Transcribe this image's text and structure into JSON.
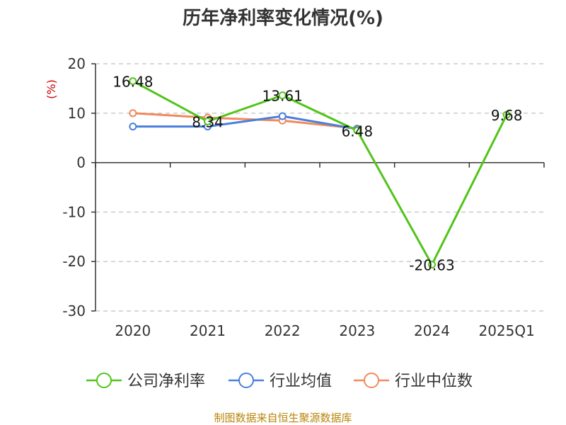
{
  "chart_data": {
    "type": "line",
    "title": "历年净利率变化情况(%)",
    "ylabel": "(%)",
    "categories": [
      "2020",
      "2021",
      "2022",
      "2023",
      "2024",
      "2025Q1"
    ],
    "ylim": [
      -30,
      20
    ],
    "yticks": [
      20,
      10,
      0,
      -10,
      -20,
      -30
    ],
    "grid": true,
    "legend_position": "bottom",
    "series": [
      {
        "name": "公司净利率",
        "color": "#52c41a",
        "values": [
          16.48,
          8.34,
          13.61,
          6.48,
          -20.63,
          9.68
        ],
        "labels": [
          "16.48",
          "8.34",
          "13.61",
          "6.48",
          "-20.63",
          "9.68"
        ]
      },
      {
        "name": "行业均值",
        "color": "#4a7fdb",
        "values": [
          7.3,
          7.3,
          9.4,
          6.8,
          null,
          null
        ]
      },
      {
        "name": "行业中位数",
        "color": "#f08a5d",
        "values": [
          10.0,
          9.1,
          8.5,
          6.9,
          null,
          null
        ]
      }
    ]
  },
  "source_text": "制图数据来自恒生聚源数据库",
  "colors": {
    "unit_label": "#cc0000",
    "source_text": "#b8860b",
    "axis": "#333333",
    "grid": "#cccccc"
  }
}
